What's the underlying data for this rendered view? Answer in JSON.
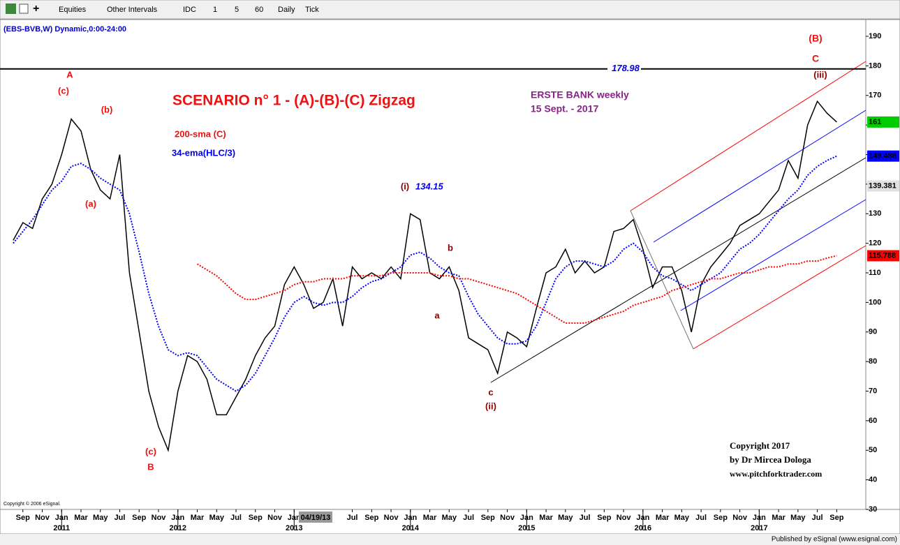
{
  "toolbar": [
    "Equities",
    "Other Intervals",
    "IDC",
    "1",
    "5",
    "60",
    "Daily",
    "Tick"
  ],
  "chart_data": {
    "type": "line",
    "title": "SCENARIO n° 1 - (A)-(B)-(C) Zigzag",
    "subtitle": [
      "ERSTE BANK weekly",
      "15 Sept. - 2017"
    ],
    "cursor_date": "04/19/13",
    "copyright": [
      "Copyright 2017",
      "by Dr Mircea Dologa",
      "www.pitchforktrader.com"
    ],
    "platform_copyright": "Copyright © 2006 eSignal.",
    "footer": "Published by eSignal (www.esignal.com)",
    "xlim": [
      "2010-07",
      "2017-12"
    ],
    "ylim": [
      30,
      190
    ],
    "yticks": [
      30,
      40,
      50,
      60,
      70,
      80,
      90,
      100,
      110,
      120,
      130,
      140,
      150,
      160,
      170,
      180,
      190
    ],
    "xticks": [
      {
        "value": "2010-09",
        "label": "Sep"
      },
      {
        "value": "2010-11",
        "label": "Nov"
      },
      {
        "value": "2011-01",
        "label": "Jan"
      },
      {
        "value": "2011-03",
        "label": "Mar"
      },
      {
        "value": "2011-05",
        "label": "May"
      },
      {
        "value": "2011-07",
        "label": "Jul"
      },
      {
        "value": "2011-09",
        "label": "Sep"
      },
      {
        "value": "2011-11",
        "label": "Nov"
      },
      {
        "value": "2012-01",
        "label": "Jan"
      },
      {
        "value": "2012-03",
        "label": "Mar"
      },
      {
        "value": "2012-05",
        "label": "May"
      },
      {
        "value": "2012-07",
        "label": "Jul"
      },
      {
        "value": "2012-09",
        "label": "Sep"
      },
      {
        "value": "2012-11",
        "label": "Nov"
      },
      {
        "value": "2013-01",
        "label": "Jan"
      },
      {
        "value": "2013-07",
        "label": "Jul"
      },
      {
        "value": "2013-09",
        "label": "Sep"
      },
      {
        "value": "2013-11",
        "label": "Nov"
      },
      {
        "value": "2014-01",
        "label": "Jan"
      },
      {
        "value": "2014-03",
        "label": "Mar"
      },
      {
        "value": "2014-05",
        "label": "May"
      },
      {
        "value": "2014-07",
        "label": "Jul"
      },
      {
        "value": "2014-09",
        "label": "Sep"
      },
      {
        "value": "2014-11",
        "label": "Nov"
      },
      {
        "value": "2015-01",
        "label": "Jan"
      },
      {
        "value": "2015-03",
        "label": "Mar"
      },
      {
        "value": "2015-05",
        "label": "May"
      },
      {
        "value": "2015-07",
        "label": "Jul"
      },
      {
        "value": "2015-09",
        "label": "Sep"
      },
      {
        "value": "2015-11",
        "label": "Nov"
      },
      {
        "value": "2016-01",
        "label": "Jan"
      },
      {
        "value": "2016-03",
        "label": "Mar"
      },
      {
        "value": "2016-05",
        "label": "May"
      },
      {
        "value": "2016-07",
        "label": "Jul"
      },
      {
        "value": "2016-09",
        "label": "Sep"
      },
      {
        "value": "2016-11",
        "label": "Nov"
      },
      {
        "value": "2017-01",
        "label": "Jan"
      },
      {
        "value": "2017-03",
        "label": "Mar"
      },
      {
        "value": "2017-05",
        "label": "May"
      },
      {
        "value": "2017-07",
        "label": "Jul"
      },
      {
        "value": "2017-09",
        "label": "Sep"
      }
    ],
    "xyears": [
      {
        "value": "2011-01",
        "label": "2011"
      },
      {
        "value": "2012-01",
        "label": "2012"
      },
      {
        "value": "2013-01",
        "label": "2013"
      },
      {
        "value": "2014-01",
        "label": "2014"
      },
      {
        "value": "2015-01",
        "label": "2015"
      },
      {
        "value": "2016-01",
        "label": "2016"
      },
      {
        "value": "2017-01",
        "label": "2017"
      }
    ],
    "x": [
      "2010-08",
      "2010-09",
      "2010-10",
      "2010-11",
      "2010-12",
      "2011-01",
      "2011-02",
      "2011-03",
      "2011-04",
      "2011-05",
      "2011-06",
      "2011-07",
      "2011-08",
      "2011-09",
      "2011-10",
      "2011-11",
      "2011-12",
      "2012-01",
      "2012-02",
      "2012-03",
      "2012-04",
      "2012-05",
      "2012-06",
      "2012-07",
      "2012-08",
      "2012-09",
      "2012-10",
      "2012-11",
      "2012-12",
      "2013-01",
      "2013-02",
      "2013-03",
      "2013-04",
      "2013-05",
      "2013-06",
      "2013-07",
      "2013-08",
      "2013-09",
      "2013-10",
      "2013-11",
      "2013-12",
      "2014-01",
      "2014-02",
      "2014-03",
      "2014-04",
      "2014-05",
      "2014-06",
      "2014-07",
      "2014-08",
      "2014-09",
      "2014-10",
      "2014-11",
      "2014-12",
      "2015-01",
      "2015-02",
      "2015-03",
      "2015-04",
      "2015-05",
      "2015-06",
      "2015-07",
      "2015-08",
      "2015-09",
      "2015-10",
      "2015-11",
      "2015-12",
      "2016-01",
      "2016-02",
      "2016-03",
      "2016-04",
      "2016-05",
      "2016-06",
      "2016-07",
      "2016-08",
      "2016-09",
      "2016-10",
      "2016-11",
      "2016-12",
      "2017-01",
      "2017-02",
      "2017-03",
      "2017-04",
      "2017-05",
      "2017-06",
      "2017-07",
      "2017-08",
      "2017-09"
    ],
    "series": [
      {
        "name": "(EBS-BVB,W) Dynamic,0:00-24:00",
        "color": "#000000",
        "values": [
          121,
          127,
          125,
          135,
          140,
          150,
          162,
          158,
          145,
          138,
          135,
          150,
          110,
          90,
          70,
          58,
          50,
          70,
          82,
          80,
          74,
          62,
          62,
          68,
          74,
          82,
          88,
          92,
          106,
          112,
          106,
          98,
          100,
          108,
          92,
          112,
          108,
          110,
          108,
          112,
          108,
          130,
          128,
          110,
          108,
          112,
          104,
          88,
          86,
          84,
          76,
          90,
          88,
          85,
          98,
          110,
          112,
          118,
          110,
          114,
          110,
          112,
          124,
          125,
          128,
          118,
          105,
          112,
          112,
          104,
          90,
          106,
          112,
          116,
          120,
          126,
          128,
          130,
          134,
          138,
          148,
          142,
          160,
          168,
          164,
          161
        ]
      },
      {
        "name": "34-ema(HLC/3)",
        "color": "#0000ff",
        "values": [
          120,
          124,
          128,
          133,
          138,
          141,
          146,
          147,
          145,
          142,
          140,
          138,
          130,
          117,
          103,
          92,
          84,
          82,
          83,
          82,
          78,
          74,
          72,
          70,
          72,
          76,
          82,
          88,
          95,
          100,
          102,
          100,
          99,
          100,
          100,
          102,
          105,
          107,
          108,
          110,
          112,
          116,
          117,
          115,
          112,
          110,
          109,
          102,
          96,
          92,
          88,
          86,
          86,
          87,
          92,
          100,
          108,
          112,
          114,
          114,
          113,
          112,
          114,
          118,
          120,
          117,
          112,
          109,
          108,
          106,
          104,
          106,
          108,
          110,
          114,
          118,
          120,
          123,
          127,
          131,
          135,
          138,
          143,
          146,
          148,
          149.486
        ]
      },
      {
        "name": "200-sma (C)",
        "color": "#ff0000",
        "values": [
          null,
          null,
          null,
          null,
          null,
          null,
          null,
          null,
          null,
          null,
          null,
          null,
          null,
          null,
          null,
          null,
          null,
          null,
          null,
          113,
          111,
          109,
          106,
          103,
          101,
          101,
          102,
          103,
          104,
          106,
          107,
          107,
          108,
          108,
          108,
          109,
          109,
          109,
          109,
          110,
          110,
          110,
          110,
          110,
          109,
          109,
          108,
          108,
          107,
          106,
          105,
          104,
          103,
          101,
          99,
          97,
          95,
          93,
          93,
          93,
          94,
          95,
          96,
          97,
          99,
          100,
          101,
          102,
          104,
          105,
          106,
          107,
          108,
          108,
          109,
          110,
          110,
          111,
          112,
          112,
          113,
          113,
          114,
          114,
          115,
          115.788
        ]
      }
    ],
    "hline": 178.98,
    "last_tags": [
      {
        "value": 161,
        "color": "#00cc00"
      },
      {
        "value": 149.486,
        "color": "#0000ff"
      },
      {
        "value": 139.381,
        "color": "#e0e0e0"
      },
      {
        "value": 115.788,
        "color": "#ff0000"
      }
    ],
    "annotations": [
      "A",
      "(c)",
      "(b)",
      "(a)",
      "(c)",
      "B",
      "(i)",
      134.15,
      "b",
      "a",
      "c",
      "(ii)",
      "(B)",
      "C",
      "(iii)"
    ]
  }
}
